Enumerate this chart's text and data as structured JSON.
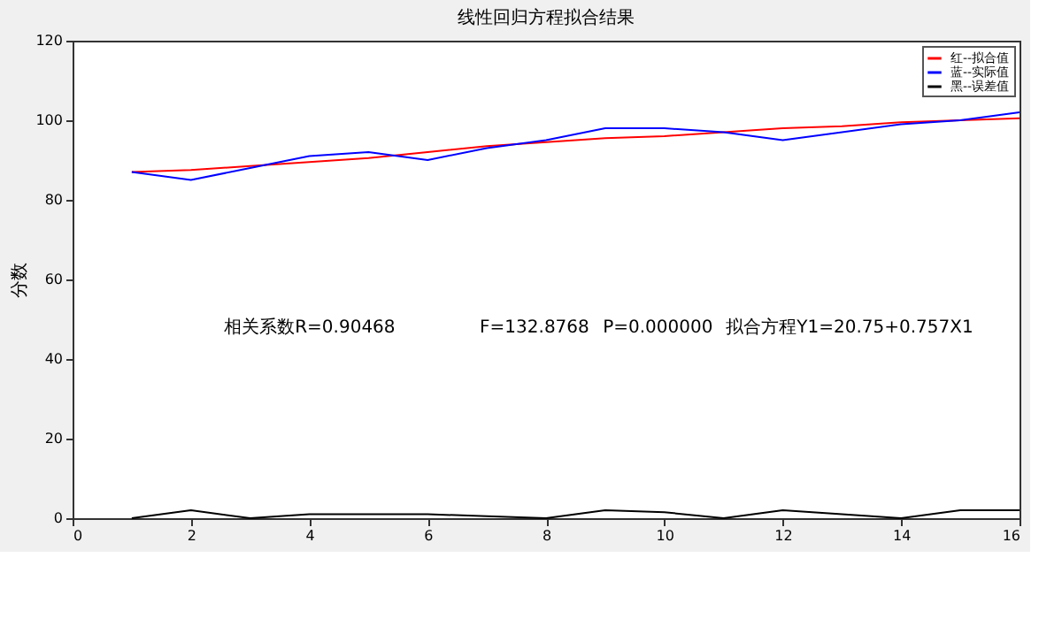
{
  "chart_data": {
    "type": "line",
    "title": "线性回归方程拟合结果",
    "ylabel": "分数",
    "x": [
      1,
      2,
      3,
      4,
      5,
      6,
      7,
      8,
      9,
      10,
      11,
      12,
      13,
      14,
      15,
      16
    ],
    "series": [
      {
        "name": "红--拟合值",
        "color": "#ff0000",
        "values": [
          87,
          87.5,
          88.5,
          89.5,
          90.5,
          92,
          93.5,
          94.5,
          95.5,
          96,
          97,
          98,
          98.5,
          99.5,
          100,
          100.5
        ]
      },
      {
        "name": "蓝--实际值",
        "color": "#0000ff",
        "values": [
          87,
          85,
          88,
          91,
          92,
          90,
          93,
          95,
          98,
          98,
          97,
          95,
          97,
          99,
          100,
          102
        ]
      },
      {
        "name": "黑--误差值",
        "color": "#000000",
        "values": [
          0,
          2,
          0,
          1,
          1,
          1,
          0.5,
          0,
          2,
          1.5,
          0,
          2,
          1,
          0,
          2,
          2
        ]
      }
    ],
    "xlim": [
      0,
      16
    ],
    "xticks": [
      0,
      2,
      4,
      6,
      8,
      10,
      12,
      14,
      16
    ],
    "ylim": [
      0,
      120
    ],
    "yticks": [
      0,
      20,
      40,
      60,
      80,
      100,
      120
    ],
    "grid": false,
    "legend": "top right",
    "marker": "none",
    "line_style": "solid",
    "annotations": [
      "相关系数R=0.90468",
      "F=132.8768",
      "P=0.000000",
      "拟合方程Y1=20.75+0.757X1"
    ]
  }
}
